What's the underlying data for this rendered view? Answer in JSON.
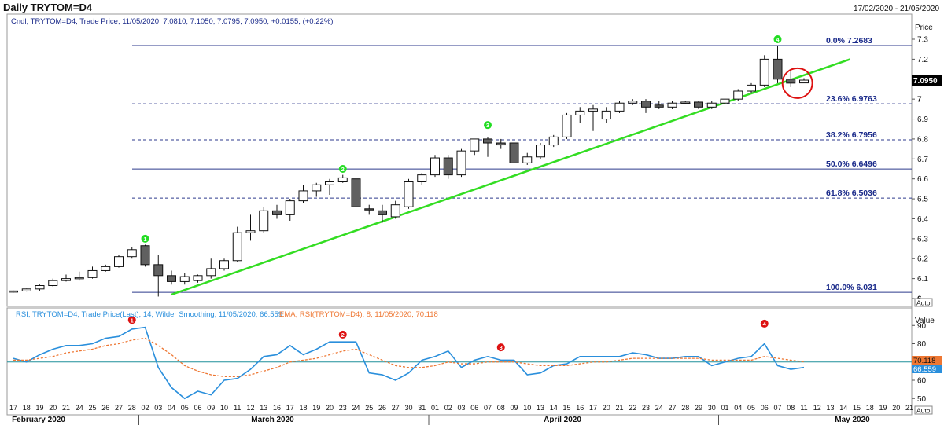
{
  "header": {
    "title": "Daily TRYTOM=D4",
    "date_range": "17/02/2020 - 21/05/2020"
  },
  "colors": {
    "up_candle": "#ffffff",
    "down_candle": "#606060",
    "trendline": "#33dd22",
    "fib_line": "#2c3a8c",
    "rsi_line": "#2a8fdc",
    "ema_line": "#ee7733",
    "rsi_baseline": "#1f8f9a",
    "marker_green": "#22dd22",
    "marker_red": "#dd1111",
    "label_blue": "#1a2a8a"
  },
  "price_panel": {
    "legend": "Cndl, TRYTOM=D4, Trade Price, 11/05/2020, 7.0810, 7.1050, 7.0795, 7.0950, +0.0155, (+0.22%)",
    "axis_title": "Price",
    "current_price_label": "7.0950",
    "auto_label": "Auto"
  },
  "rsi_panel": {
    "legend_rsi": "RSI, TRYTOM=D4, Trade Price(Last), 14, Wilder Smoothing, 11/05/2020, 66.559",
    "legend_ema": "EMA, RSI(TRYTOM=D4), 8, 11/05/2020, 70.118",
    "axis_title": "Value",
    "ema_label": "70.118",
    "rsi_label": "66.559",
    "auto_label": "Auto"
  },
  "x_axis": {
    "day_labels": [
      "17",
      "18",
      "19",
      "20",
      "21",
      "24",
      "25",
      "26",
      "27",
      "28",
      "02",
      "03",
      "04",
      "05",
      "06",
      "09",
      "10",
      "11",
      "12",
      "13",
      "16",
      "17",
      "18",
      "19",
      "20",
      "23",
      "24",
      "25",
      "26",
      "27",
      "30",
      "31",
      "01",
      "02",
      "03",
      "06",
      "07",
      "08",
      "09",
      "10",
      "13",
      "14",
      "15",
      "16",
      "17",
      "20",
      "21",
      "22",
      "23",
      "24",
      "27",
      "28",
      "29",
      "30",
      "01",
      "04",
      "05",
      "06",
      "07",
      "08",
      "11",
      "12",
      "13",
      "14",
      "15",
      "18",
      "19",
      "20",
      "21"
    ],
    "month_labels": [
      {
        "label": "February 2020",
        "start_index": 0
      },
      {
        "label": "March 2020",
        "start_index": 10
      },
      {
        "label": "April 2020",
        "start_index": 32
      },
      {
        "label": "May 2020",
        "start_index": 54
      }
    ]
  },
  "chart_data": {
    "type": "candlestick",
    "title": "Daily TRYTOM=D4",
    "ylabel": "Price",
    "ylim": [
      5.99,
      7.34
    ],
    "y_ticks": [
      6,
      6.1,
      6.2,
      6.3,
      6.4,
      6.5,
      6.6,
      6.7,
      6.8,
      6.9,
      7,
      7.1,
      7.2,
      7.3
    ],
    "candles": [
      {
        "date": "17/02",
        "o": 6.035,
        "h": 6.04,
        "l": 6.03,
        "c": 6.038
      },
      {
        "date": "18/02",
        "o": 6.038,
        "h": 6.05,
        "l": 6.035,
        "c": 6.048
      },
      {
        "date": "19/02",
        "o": 6.048,
        "h": 6.07,
        "l": 6.04,
        "c": 6.065
      },
      {
        "date": "20/02",
        "o": 6.065,
        "h": 6.1,
        "l": 6.06,
        "c": 6.09
      },
      {
        "date": "21/02",
        "o": 6.09,
        "h": 6.12,
        "l": 6.085,
        "c": 6.1
      },
      {
        "date": "24/02",
        "o": 6.1,
        "h": 6.135,
        "l": 6.09,
        "c": 6.105
      },
      {
        "date": "25/02",
        "o": 6.105,
        "h": 6.16,
        "l": 6.1,
        "c": 6.14
      },
      {
        "date": "26/02",
        "o": 6.14,
        "h": 6.17,
        "l": 6.135,
        "c": 6.16
      },
      {
        "date": "27/02",
        "o": 6.16,
        "h": 6.22,
        "l": 6.155,
        "c": 6.21
      },
      {
        "date": "28/02",
        "o": 6.21,
        "h": 6.26,
        "l": 6.2,
        "c": 6.245
      },
      {
        "date": "02/03",
        "o": 6.265,
        "h": 6.27,
        "l": 6.16,
        "c": 6.17
      },
      {
        "date": "03/03",
        "o": 6.17,
        "h": 6.22,
        "l": 6.01,
        "c": 6.115
      },
      {
        "date": "04/03",
        "o": 6.115,
        "h": 6.14,
        "l": 6.07,
        "c": 6.085
      },
      {
        "date": "05/03",
        "o": 6.085,
        "h": 6.13,
        "l": 6.07,
        "c": 6.11
      },
      {
        "date": "06/03",
        "o": 6.09,
        "h": 6.12,
        "l": 6.08,
        "c": 6.115
      },
      {
        "date": "09/03",
        "o": 6.115,
        "h": 6.2,
        "l": 6.1,
        "c": 6.15
      },
      {
        "date": "10/03",
        "o": 6.15,
        "h": 6.2,
        "l": 6.14,
        "c": 6.19
      },
      {
        "date": "11/03",
        "o": 6.19,
        "h": 6.36,
        "l": 6.185,
        "c": 6.33
      },
      {
        "date": "12/03",
        "o": 6.33,
        "h": 6.42,
        "l": 6.29,
        "c": 6.34
      },
      {
        "date": "13/03",
        "o": 6.34,
        "h": 6.46,
        "l": 6.33,
        "c": 6.44
      },
      {
        "date": "16/03",
        "o": 6.44,
        "h": 6.47,
        "l": 6.4,
        "c": 6.42
      },
      {
        "date": "17/03",
        "o": 6.42,
        "h": 6.5,
        "l": 6.39,
        "c": 6.49
      },
      {
        "date": "18/03",
        "o": 6.49,
        "h": 6.57,
        "l": 6.48,
        "c": 6.54
      },
      {
        "date": "19/03",
        "o": 6.54,
        "h": 6.58,
        "l": 6.51,
        "c": 6.57
      },
      {
        "date": "20/03",
        "o": 6.57,
        "h": 6.6,
        "l": 6.52,
        "c": 6.585
      },
      {
        "date": "23/03",
        "o": 6.585,
        "h": 6.62,
        "l": 6.58,
        "c": 6.605
      },
      {
        "date": "24/03",
        "o": 6.6,
        "h": 6.61,
        "l": 6.41,
        "c": 6.46
      },
      {
        "date": "25/03",
        "o": 6.45,
        "h": 6.47,
        "l": 6.42,
        "c": 6.445
      },
      {
        "date": "26/03",
        "o": 6.44,
        "h": 6.47,
        "l": 6.38,
        "c": 6.42
      },
      {
        "date": "27/03",
        "o": 6.41,
        "h": 6.49,
        "l": 6.4,
        "c": 6.47
      },
      {
        "date": "30/03",
        "o": 6.46,
        "h": 6.6,
        "l": 6.45,
        "c": 6.585
      },
      {
        "date": "31/03",
        "o": 6.585,
        "h": 6.63,
        "l": 6.57,
        "c": 6.62
      },
      {
        "date": "01/04",
        "o": 6.62,
        "h": 6.72,
        "l": 6.61,
        "c": 6.705
      },
      {
        "date": "02/04",
        "o": 6.705,
        "h": 6.72,
        "l": 6.6,
        "c": 6.62
      },
      {
        "date": "03/04",
        "o": 6.62,
        "h": 6.75,
        "l": 6.61,
        "c": 6.74
      },
      {
        "date": "06/04",
        "o": 6.74,
        "h": 6.8,
        "l": 6.72,
        "c": 6.8
      },
      {
        "date": "07/04",
        "o": 6.8,
        "h": 6.81,
        "l": 6.71,
        "c": 6.78
      },
      {
        "date": "08/04",
        "o": 6.78,
        "h": 6.8,
        "l": 6.75,
        "c": 6.77
      },
      {
        "date": "09/04",
        "o": 6.78,
        "h": 6.8,
        "l": 6.63,
        "c": 6.68
      },
      {
        "date": "10/04",
        "o": 6.68,
        "h": 6.73,
        "l": 6.67,
        "c": 6.71
      },
      {
        "date": "13/04",
        "o": 6.71,
        "h": 6.78,
        "l": 6.7,
        "c": 6.77
      },
      {
        "date": "14/04",
        "o": 6.77,
        "h": 6.82,
        "l": 6.76,
        "c": 6.81
      },
      {
        "date": "15/04",
        "o": 6.81,
        "h": 6.93,
        "l": 6.8,
        "c": 6.92
      },
      {
        "date": "16/04",
        "o": 6.92,
        "h": 6.96,
        "l": 6.88,
        "c": 6.94
      },
      {
        "date": "17/04",
        "o": 6.94,
        "h": 6.97,
        "l": 6.84,
        "c": 6.95
      },
      {
        "date": "20/04",
        "o": 6.9,
        "h": 6.96,
        "l": 6.88,
        "c": 6.94
      },
      {
        "date": "21/04",
        "o": 6.94,
        "h": 6.99,
        "l": 6.93,
        "c": 6.98
      },
      {
        "date": "22/04",
        "o": 6.98,
        "h": 7.0,
        "l": 6.97,
        "c": 6.99
      },
      {
        "date": "23/04",
        "o": 6.99,
        "h": 7.0,
        "l": 6.93,
        "c": 6.96
      },
      {
        "date": "24/04",
        "o": 6.97,
        "h": 6.99,
        "l": 6.95,
        "c": 6.96
      },
      {
        "date": "27/04",
        "o": 6.96,
        "h": 6.99,
        "l": 6.95,
        "c": 6.98
      },
      {
        "date": "28/04",
        "o": 6.98,
        "h": 6.99,
        "l": 6.975,
        "c": 6.985
      },
      {
        "date": "29/04",
        "o": 6.985,
        "h": 6.99,
        "l": 6.95,
        "c": 6.96
      },
      {
        "date": "30/04",
        "o": 6.96,
        "h": 6.99,
        "l": 6.95,
        "c": 6.98
      },
      {
        "date": "01/05",
        "o": 6.98,
        "h": 7.02,
        "l": 6.975,
        "c": 7.0
      },
      {
        "date": "04/05",
        "o": 7.0,
        "h": 7.05,
        "l": 6.99,
        "c": 7.04
      },
      {
        "date": "05/05",
        "o": 7.04,
        "h": 7.08,
        "l": 7.03,
        "c": 7.07
      },
      {
        "date": "06/05",
        "o": 7.07,
        "h": 7.22,
        "l": 7.06,
        "c": 7.2
      },
      {
        "date": "07/05",
        "o": 7.2,
        "h": 7.2683,
        "l": 7.08,
        "c": 7.1
      },
      {
        "date": "08/05",
        "o": 7.1,
        "h": 7.14,
        "l": 7.06,
        "c": 7.08
      },
      {
        "date": "11/05",
        "o": 7.081,
        "h": 7.105,
        "l": 7.0795,
        "c": 7.095
      }
    ],
    "fib_levels": [
      {
        "label": "0.0%",
        "value": 7.2683,
        "dashed": false
      },
      {
        "label": "23.6%",
        "value": 6.9763,
        "dashed": true
      },
      {
        "label": "38.2%",
        "value": 6.7956,
        "dashed": true
      },
      {
        "label": "50.0%",
        "value": 6.6496,
        "dashed": false
      },
      {
        "label": "61.8%",
        "value": 6.5036,
        "dashed": true
      },
      {
        "label": "100.0%",
        "value": 6.031,
        "dashed": false
      }
    ],
    "trendline": {
      "from": {
        "index": 12,
        "price": 6.02
      },
      "to": {
        "index": 63.5,
        "price": 7.2
      }
    },
    "price_markers": [
      {
        "label": "1",
        "index": 10,
        "price": 6.3
      },
      {
        "label": "2",
        "index": 25,
        "price": 6.65
      },
      {
        "label": "3",
        "index": 36,
        "price": 6.87
      },
      {
        "label": "4",
        "index": 58,
        "price": 7.3
      }
    ],
    "highlight_circle": {
      "index": 59.5,
      "price": 7.08
    },
    "rsi": {
      "ylabel": "Value",
      "ylim": [
        46,
        100
      ],
      "y_ticks": [
        50,
        60,
        70,
        80,
        90
      ],
      "baseline": 70,
      "values": [
        72,
        70,
        74,
        77,
        79,
        79,
        80,
        83,
        84,
        88,
        89,
        67,
        56,
        50,
        54,
        52,
        60,
        61,
        66,
        73,
        74,
        79,
        74,
        77,
        81,
        81,
        81,
        64,
        63,
        60,
        64,
        71,
        73,
        76,
        67,
        71,
        73,
        71,
        71,
        63,
        64,
        68,
        69,
        73,
        73,
        73,
        73,
        75,
        74,
        72,
        72,
        73,
        73,
        68,
        70,
        72,
        73,
        80,
        68,
        66,
        67
      ],
      "ema": [
        71,
        71,
        72,
        73,
        75,
        76,
        77,
        79,
        80,
        82,
        83,
        79,
        74,
        68,
        65,
        63,
        62,
        62,
        63,
        65,
        67,
        70,
        71,
        72,
        74,
        76,
        77,
        74,
        71,
        68,
        67,
        67,
        68,
        70,
        69,
        69,
        70,
        70,
        70,
        69,
        68,
        68,
        68,
        69,
        70,
        70,
        71,
        72,
        72,
        72,
        72,
        72,
        72,
        71,
        71,
        71,
        71,
        73,
        72,
        71,
        70.118
      ],
      "markers": [
        {
          "label": "1",
          "index": 9,
          "value": 93
        },
        {
          "label": "2",
          "index": 25,
          "value": 85
        },
        {
          "label": "3",
          "index": 37,
          "value": 78
        },
        {
          "label": "4",
          "index": 57,
          "value": 91
        }
      ]
    }
  }
}
